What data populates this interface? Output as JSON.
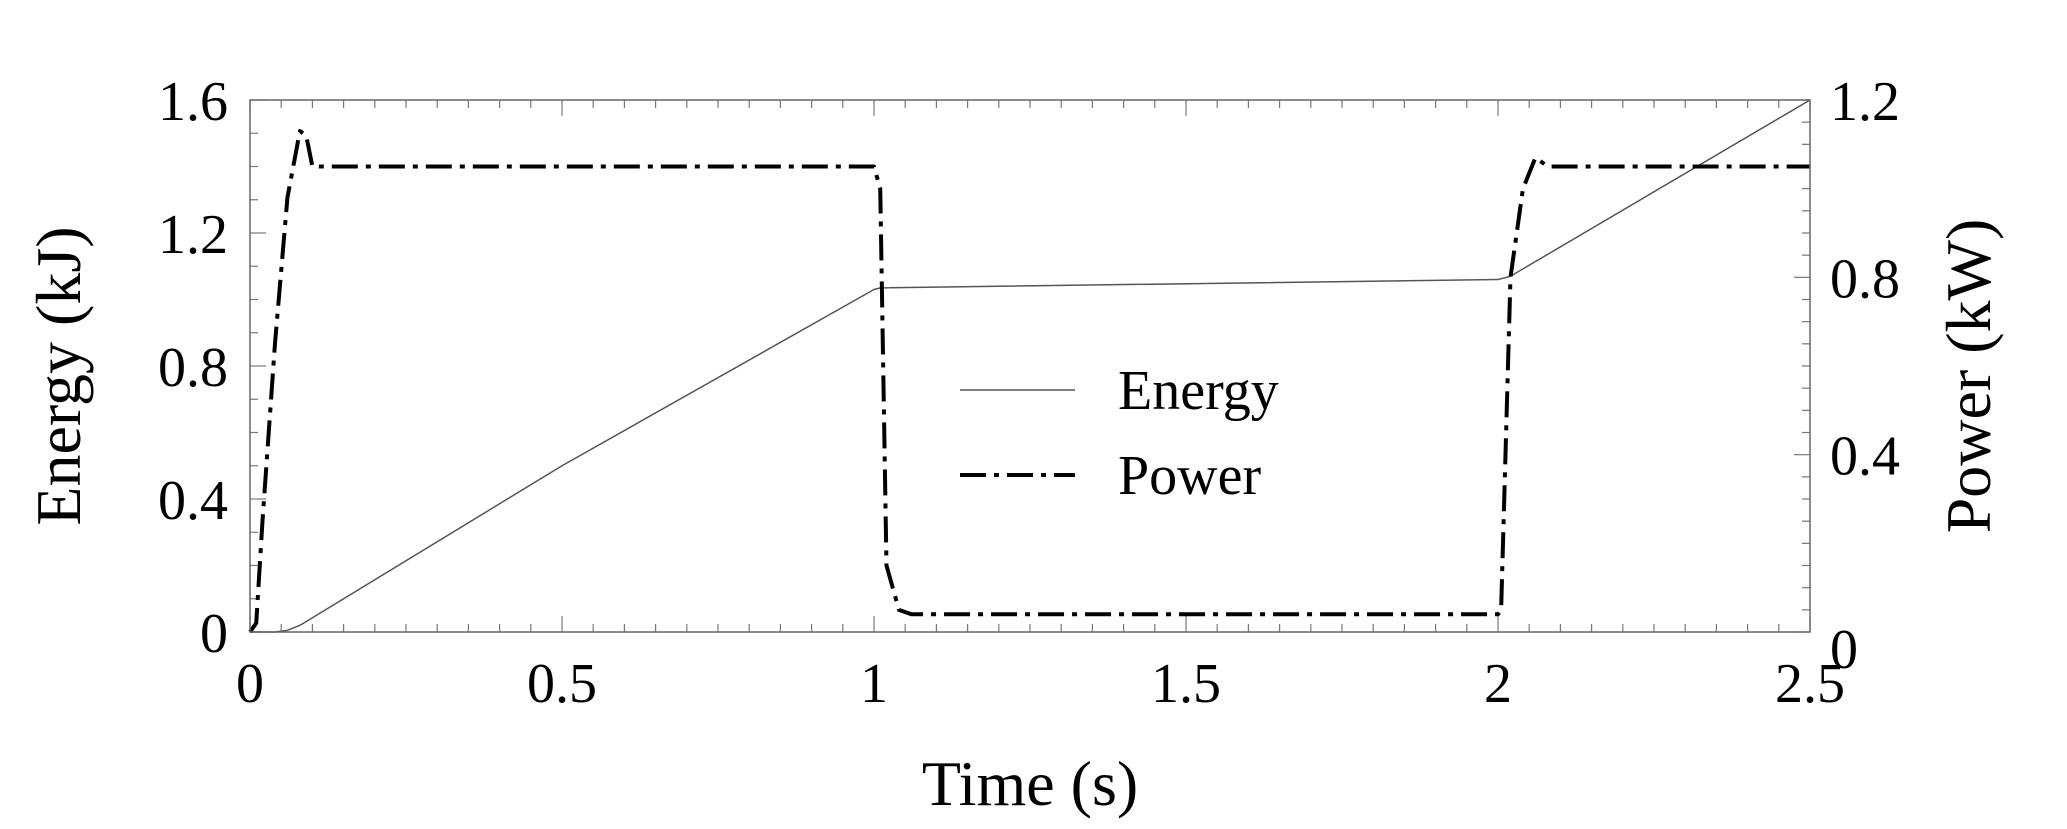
{
  "chart_data": {
    "type": "line",
    "xlabel": "Time (s)",
    "ylabel": "Energy (kJ)",
    "y2label": "Power (kW)",
    "xlim": [
      0,
      2.5
    ],
    "ylim": [
      0,
      1.6
    ],
    "y2lim": [
      0,
      1.2
    ],
    "x_ticks": [
      "0",
      "0.5",
      "1",
      "1.5",
      "2",
      "2.5"
    ],
    "y_ticks": [
      "0",
      "0.4",
      "0.8",
      "1.2",
      "1.6"
    ],
    "y2_ticks": [
      "0",
      "0.4",
      "0.8",
      "1.2"
    ],
    "grid": false,
    "legend_position": "center",
    "series": [
      {
        "name": "Energy",
        "axis": "left",
        "style": "solid",
        "x": [
          0,
          0.02,
          0.04,
          0.06,
          0.08,
          0.5,
          1.0,
          1.01,
          2.0,
          2.02,
          2.5
        ],
        "y": [
          0,
          0,
          0,
          0.005,
          0.02,
          0.5,
          1.03,
          1.035,
          1.06,
          1.07,
          1.6
        ]
      },
      {
        "name": "Power",
        "axis": "right",
        "style": "dash-dot",
        "x": [
          0,
          0.01,
          0.02,
          0.04,
          0.06,
          0.08,
          0.09,
          0.1,
          0.12,
          1.0,
          1.01,
          1.02,
          1.04,
          1.06,
          1.1,
          2.0,
          2.005,
          2.01,
          2.02,
          2.04,
          2.06,
          2.08,
          2.1,
          2.5
        ],
        "y": [
          0,
          0.02,
          0.25,
          0.65,
          0.98,
          1.13,
          1.12,
          1.05,
          1.05,
          1.05,
          1.0,
          0.15,
          0.05,
          0.04,
          0.04,
          0.04,
          0.05,
          0.3,
          0.8,
          1.0,
          1.07,
          1.05,
          1.05,
          1.05
        ]
      }
    ]
  }
}
